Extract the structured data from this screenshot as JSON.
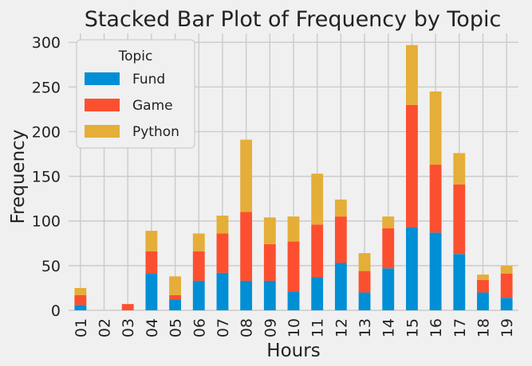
{
  "chart_data": {
    "type": "bar",
    "stacked": true,
    "title": "Stacked Bar Plot of Frequency by Topic",
    "xlabel": "Hours",
    "ylabel": "Frequency",
    "categories": [
      "01",
      "02",
      "03",
      "04",
      "05",
      "06",
      "07",
      "08",
      "09",
      "10",
      "11",
      "12",
      "13",
      "14",
      "15",
      "16",
      "17",
      "18",
      "19"
    ],
    "ylim": [
      0,
      310
    ],
    "yticks": [
      0,
      50,
      100,
      150,
      200,
      250,
      300
    ],
    "grid": true,
    "legend": {
      "title": "Topic",
      "placement": "top-left"
    },
    "series": [
      {
        "name": "Fund",
        "color": "#008fd5",
        "values": [
          6,
          0,
          0,
          41,
          12,
          33,
          42,
          33,
          33,
          21,
          37,
          53,
          20,
          47,
          93,
          87,
          63,
          20,
          14
        ]
      },
      {
        "name": "Game",
        "color": "#fc4f30",
        "values": [
          11,
          0,
          7,
          25,
          5,
          33,
          44,
          77,
          41,
          56,
          59,
          52,
          24,
          45,
          137,
          76,
          78,
          14,
          27
        ]
      },
      {
        "name": "Python",
        "color": "#e5ae38",
        "values": [
          8,
          0,
          0,
          23,
          21,
          20,
          20,
          81,
          30,
          28,
          57,
          19,
          20,
          13,
          67,
          82,
          35,
          6,
          9
        ]
      }
    ]
  }
}
